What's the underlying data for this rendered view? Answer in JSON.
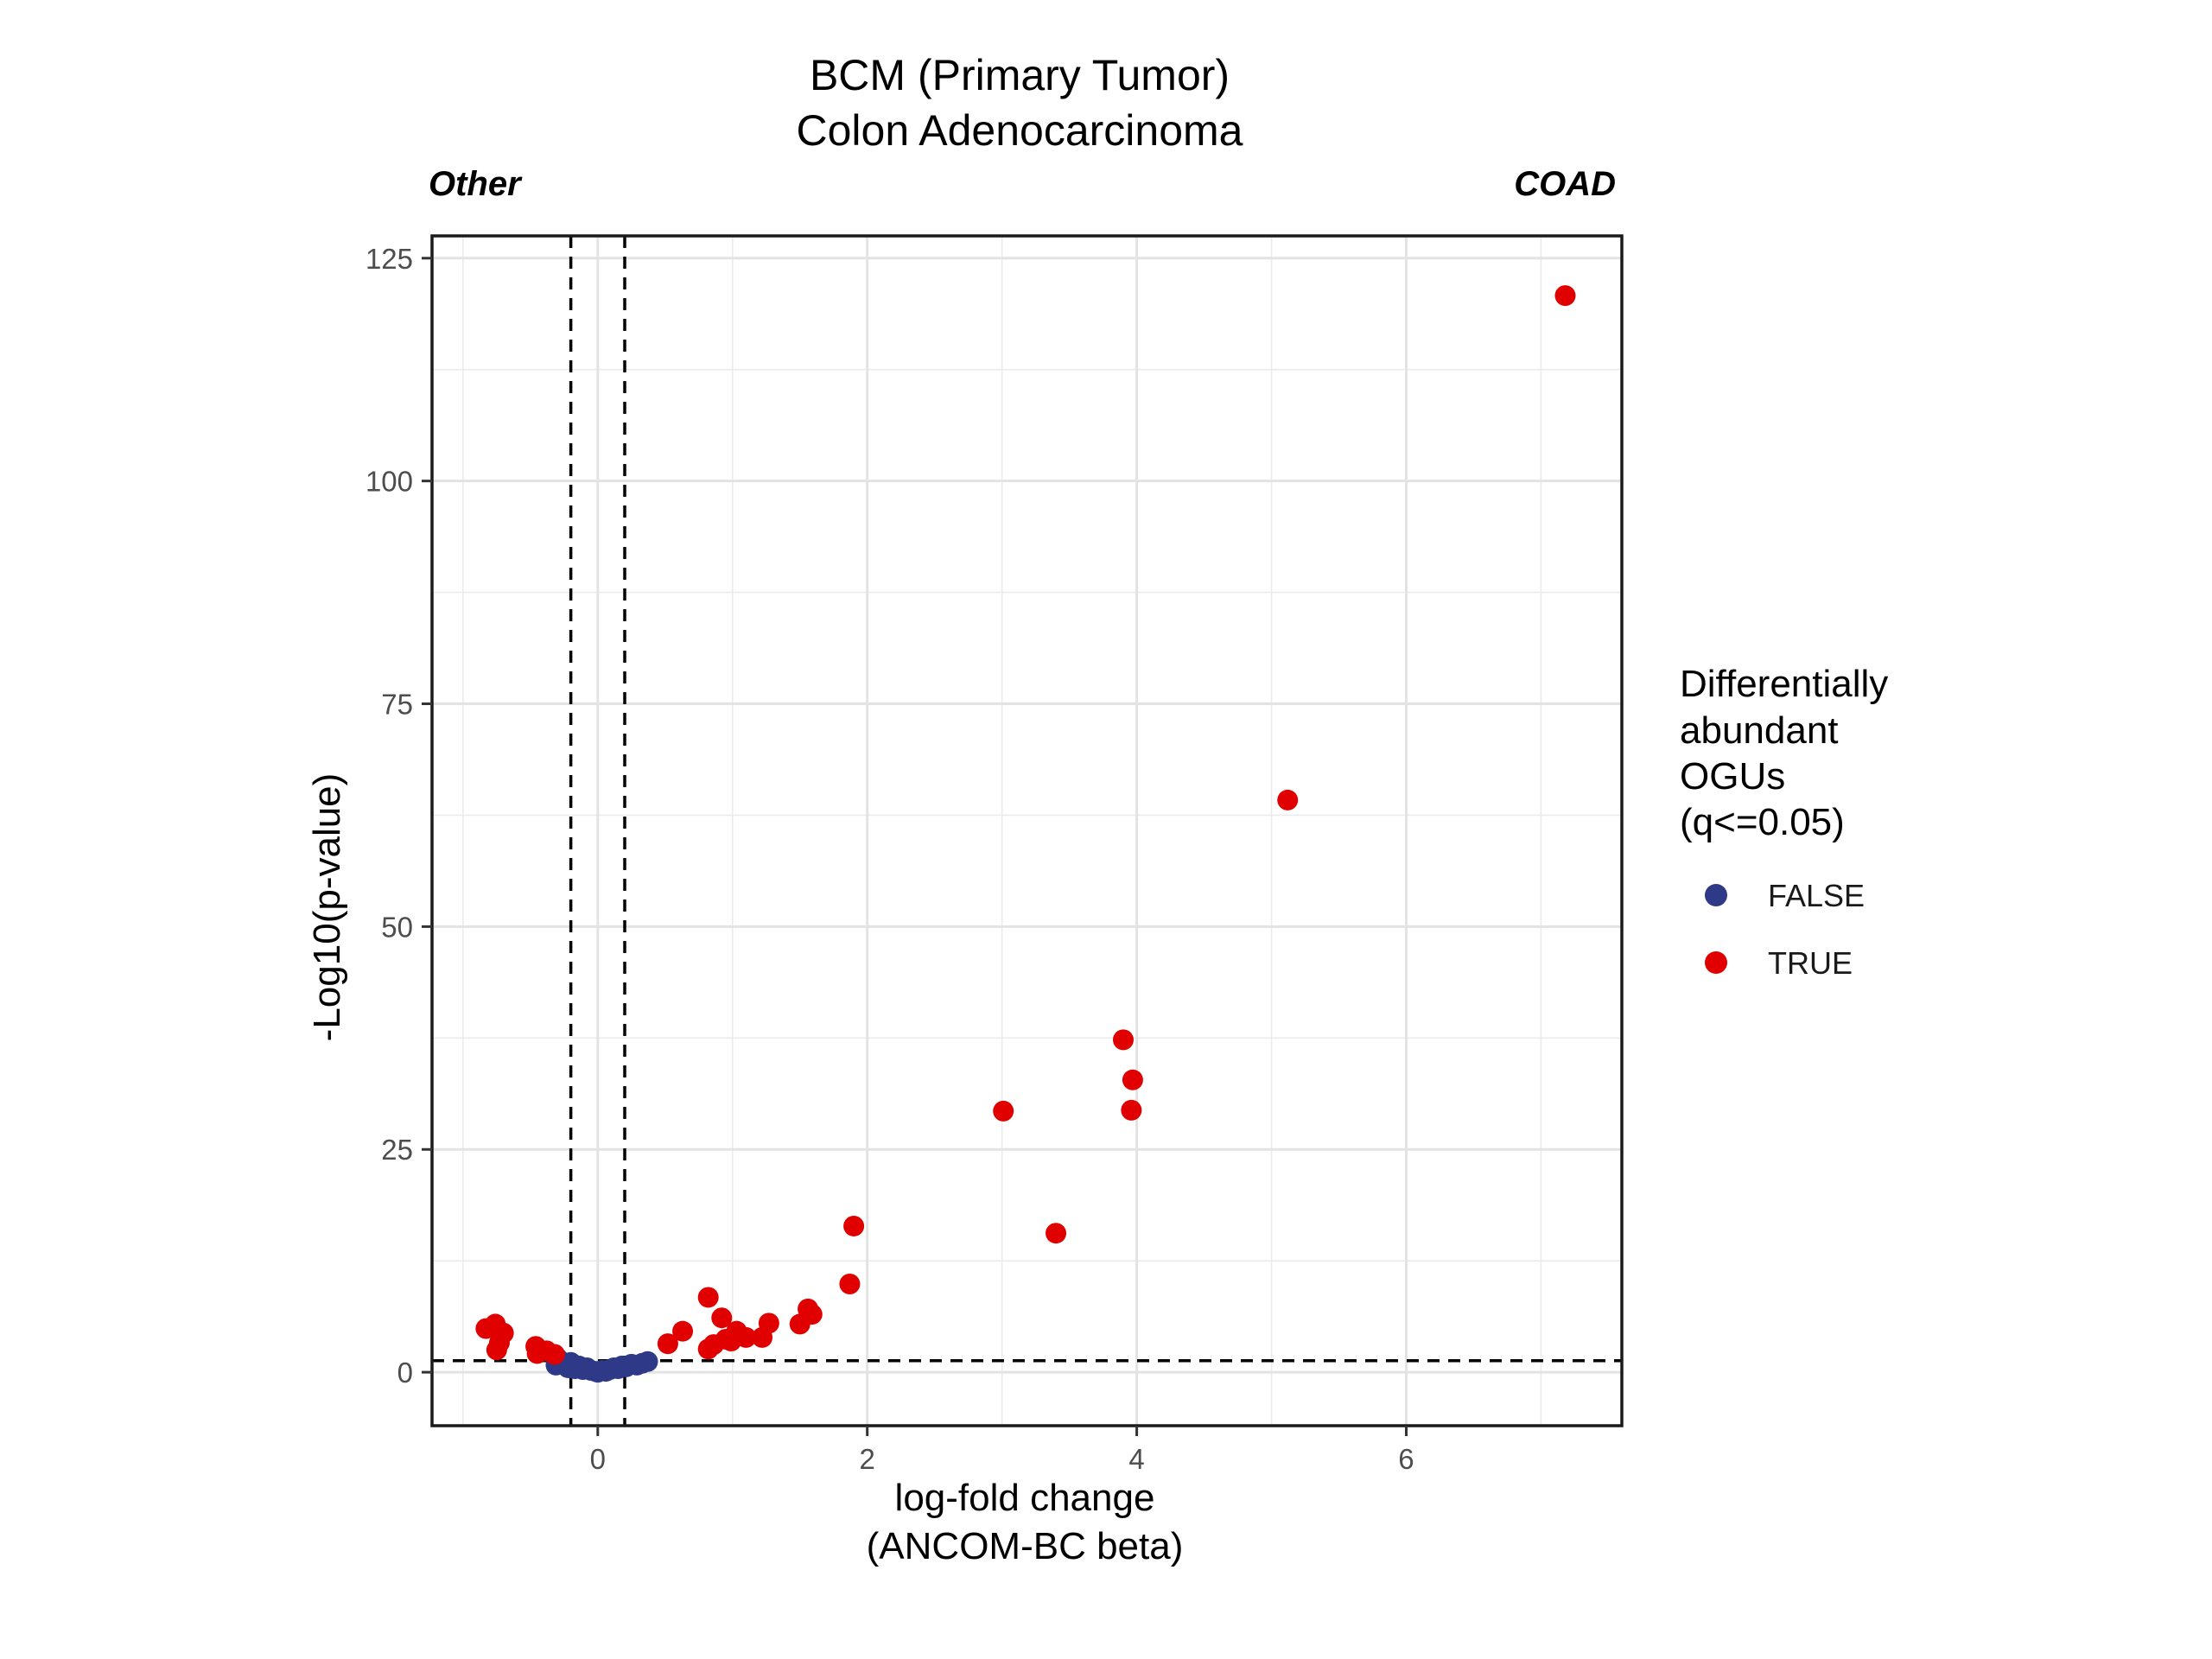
{
  "chart_data": {
    "type": "scatter",
    "title": [
      "BCM (Primary Tumor)",
      "Colon Adenocarcinoma"
    ],
    "corner_labels": {
      "left": "Other",
      "right": "COAD"
    },
    "xlabel": [
      "log-fold change",
      "(ANCOM-BC beta)"
    ],
    "ylabel": "-Log10(p-value)",
    "xlim": [
      -1.23,
      7.6
    ],
    "ylim": [
      -6,
      127.5
    ],
    "xticks": [
      0,
      2,
      4,
      6
    ],
    "yticks": [
      0,
      25,
      50,
      75,
      100,
      125
    ],
    "grid": true,
    "reference_lines": {
      "vertical": [
        -0.2,
        0.2
      ],
      "horizontal": [
        1.3
      ]
    },
    "legend": {
      "title": [
        "Differentially",
        "abundant",
        "OGUs",
        "(q<=0.05)"
      ],
      "placement": "right",
      "entries": [
        {
          "label": "FALSE",
          "color": "#2e3a87"
        },
        {
          "label": "TRUE",
          "color": "#e00000"
        }
      ]
    },
    "series": [
      {
        "name": "FALSE",
        "color": "#2e3a87",
        "points": [
          [
            -0.31,
            0.8
          ],
          [
            -0.3,
            1.6
          ],
          [
            -0.27,
            1.2
          ],
          [
            -0.25,
            0.9
          ],
          [
            -0.22,
            0.5
          ],
          [
            -0.2,
            1.1
          ],
          [
            -0.17,
            0.4
          ],
          [
            -0.14,
            0.7
          ],
          [
            -0.11,
            0.3
          ],
          [
            -0.08,
            0.5
          ],
          [
            -0.05,
            0.2
          ],
          [
            -0.02,
            0.1
          ],
          [
            0.0,
            0.0
          ],
          [
            0.03,
            0.2
          ],
          [
            0.06,
            0.1
          ],
          [
            0.09,
            0.3
          ],
          [
            0.12,
            0.5
          ],
          [
            0.15,
            0.4
          ],
          [
            0.18,
            0.7
          ],
          [
            0.21,
            0.6
          ],
          [
            0.25,
            0.9
          ],
          [
            0.29,
            0.8
          ],
          [
            0.33,
            1.0
          ],
          [
            0.37,
            1.2
          ]
        ]
      },
      {
        "name": "TRUE",
        "color": "#e00000",
        "points": [
          [
            7.18,
            120.8
          ],
          [
            5.12,
            64.2
          ],
          [
            3.9,
            37.3
          ],
          [
            3.97,
            32.8
          ],
          [
            3.96,
            29.4
          ],
          [
            3.01,
            29.3
          ],
          [
            3.4,
            15.6
          ],
          [
            1.9,
            16.4
          ],
          [
            1.87,
            9.9
          ],
          [
            -0.83,
            4.9
          ],
          [
            -0.76,
            5.4
          ],
          [
            -0.7,
            4.4
          ],
          [
            -0.73,
            3.3
          ],
          [
            -0.75,
            2.5
          ],
          [
            -0.46,
            2.9
          ],
          [
            -0.45,
            2.1
          ],
          [
            -0.38,
            2.4
          ],
          [
            -0.32,
            2.0
          ],
          [
            0.52,
            3.2
          ],
          [
            0.63,
            4.6
          ],
          [
            0.82,
            8.4
          ],
          [
            0.82,
            2.6
          ],
          [
            0.86,
            3.1
          ],
          [
            0.92,
            6.1
          ],
          [
            0.95,
            3.7
          ],
          [
            0.99,
            3.5
          ],
          [
            1.03,
            4.6
          ],
          [
            1.1,
            3.9
          ],
          [
            1.22,
            3.9
          ],
          [
            1.27,
            5.5
          ],
          [
            1.5,
            5.4
          ],
          [
            1.56,
            7.1
          ],
          [
            1.59,
            6.5
          ]
        ]
      }
    ]
  }
}
